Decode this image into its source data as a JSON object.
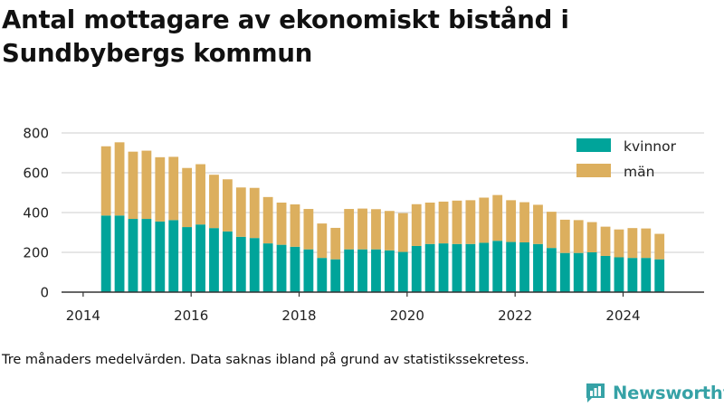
{
  "title": "Antal mottagare av ekonomiskt bistånd i Sundbybergs kommun",
  "footnote": "Tre månaders medelvärden. Data saknas ibland på grund av statistikssekretess.",
  "brand": "Newsworthy",
  "colors": {
    "kvinnor": "#00a49a",
    "man": "#dcaf5e",
    "axis": "#333333",
    "grid": "#cccccc"
  },
  "chart_data": {
    "type": "bar",
    "stacked": true,
    "title": "Antal mottagare av ekonomiskt bistånd i Sundbybergs kommun",
    "xlabel": "",
    "ylabel": "",
    "ylim": [
      0,
      800
    ],
    "yticks": [
      0,
      200,
      400,
      600,
      800
    ],
    "xticks": [
      "2014",
      "2016",
      "2018",
      "2020",
      "2022",
      "2024"
    ],
    "grid": true,
    "legend_position": "top-right",
    "x": [
      "2014-05",
      "2014-08",
      "2014-11",
      "2015-02",
      "2015-05",
      "2015-08",
      "2015-11",
      "2016-02",
      "2016-05",
      "2016-08",
      "2016-11",
      "2017-02",
      "2017-05",
      "2017-08",
      "2017-11",
      "2018-02",
      "2018-05",
      "2018-08",
      "2018-11",
      "2019-02",
      "2019-05",
      "2019-08",
      "2019-11",
      "2020-02",
      "2020-05",
      "2020-08",
      "2020-11",
      "2021-02",
      "2021-05",
      "2021-08",
      "2021-11",
      "2022-02",
      "2022-05",
      "2022-08",
      "2022-11",
      "2023-02",
      "2023-05",
      "2023-08",
      "2023-11",
      "2024-02",
      "2024-05",
      "2024-08"
    ],
    "series": [
      {
        "name": "kvinnor",
        "values": [
          385,
          385,
          368,
          368,
          355,
          362,
          327,
          340,
          322,
          305,
          278,
          272,
          245,
          238,
          228,
          215,
          172,
          165,
          215,
          215,
          215,
          210,
          202,
          232,
          242,
          245,
          242,
          242,
          248,
          258,
          252,
          250,
          242,
          222,
          197,
          197,
          200,
          182,
          175,
          172,
          172,
          165
        ]
      },
      {
        "name": "män",
        "values": [
          348,
          368,
          338,
          343,
          323,
          318,
          297,
          303,
          268,
          262,
          248,
          252,
          233,
          212,
          213,
          203,
          173,
          158,
          203,
          205,
          202,
          198,
          195,
          210,
          208,
          210,
          218,
          220,
          227,
          230,
          210,
          202,
          197,
          182,
          167,
          165,
          152,
          147,
          140,
          150,
          148,
          128
        ]
      }
    ]
  }
}
